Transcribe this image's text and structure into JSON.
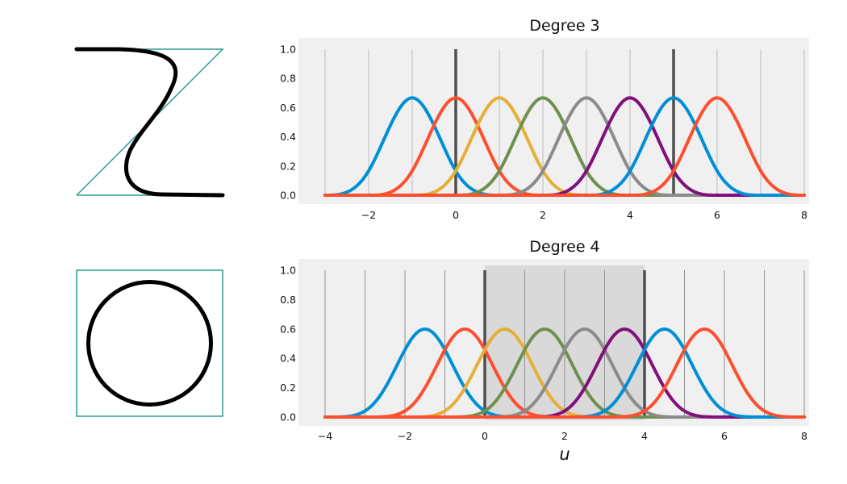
{
  "colors": {
    "background": "#ffffff",
    "plot_background": "#f0f0f0",
    "highlight_band": "#d9d9d9",
    "grid": "#bdbdbd",
    "knot_line": "#4f4f4f",
    "control_polygon": "#2a9d8f",
    "curve": "#000000",
    "series": [
      "#008fd5",
      "#fc4f30",
      "#e5ae38",
      "#6d904f",
      "#8b8b8b",
      "#810f7c",
      "#008fd5",
      "#fc4f30"
    ]
  },
  "insets": [
    {
      "name": "z-curve",
      "shape": "control-polygon with cubic B-spline curve"
    },
    {
      "name": "circle",
      "shape": "square control polygon with closed curve"
    }
  ],
  "chart_data": [
    {
      "type": "line",
      "title": "Degree 3",
      "xlabel": "",
      "ylabel": "",
      "degree": 3,
      "xlim": [
        -3.5,
        8.1
      ],
      "ylim": [
        -0.05,
        1.07
      ],
      "xticks": [
        -2,
        0,
        2,
        4,
        6,
        8
      ],
      "xtick_labels": [
        "−2",
        "0",
        "2",
        "4",
        "6",
        "8"
      ],
      "yticks": [
        0.0,
        0.2,
        0.4,
        0.6,
        0.8,
        1.0
      ],
      "ytick_labels": [
        "0.0",
        "0.2",
        "0.4",
        "0.6",
        "0.8",
        "1.0"
      ],
      "knots": [
        -3,
        -2,
        -1,
        0,
        1,
        2,
        3,
        4,
        5,
        6,
        7,
        8
      ],
      "knot_grid": true,
      "domain_knots": [
        0,
        5
      ],
      "shaded_domain": false,
      "series": [
        {
          "knot_start": -3,
          "peak_x": -1,
          "peak_y": 0.667
        },
        {
          "knot_start": -2,
          "peak_x": 0,
          "peak_y": 0.667
        },
        {
          "knot_start": -1,
          "peak_x": 1,
          "peak_y": 0.667
        },
        {
          "knot_start": 0,
          "peak_x": 2,
          "peak_y": 0.667
        },
        {
          "knot_start": 1,
          "peak_x": 3,
          "peak_y": 0.667
        },
        {
          "knot_start": 2,
          "peak_x": 4,
          "peak_y": 0.667
        },
        {
          "knot_start": 3,
          "peak_x": 5,
          "peak_y": 0.667
        },
        {
          "knot_start": 4,
          "peak_x": 6,
          "peak_y": 0.667
        }
      ]
    },
    {
      "type": "line",
      "title": "Degree 4",
      "xlabel": "u",
      "ylabel": "",
      "degree": 4,
      "xlim": [
        -4.3,
        8.1
      ],
      "ylim": [
        -0.06,
        1.07
      ],
      "xticks": [
        -4,
        -2,
        0,
        2,
        4,
        6,
        8
      ],
      "xtick_labels": [
        "−4",
        "−2",
        "0",
        "2",
        "4",
        "6",
        "8"
      ],
      "yticks": [
        0.0,
        0.2,
        0.4,
        0.6,
        0.8,
        1.0
      ],
      "ytick_labels": [
        "0.0",
        "0.2",
        "0.4",
        "0.6",
        "0.8",
        "1.0"
      ],
      "knots": [
        -4,
        -3,
        -2,
        -1,
        0,
        1,
        2,
        3,
        4,
        5,
        6,
        7,
        8
      ],
      "knot_grid": true,
      "domain_knots": [
        0,
        4
      ],
      "shaded_domain": true,
      "series": [
        {
          "knot_start": -4,
          "peak_x": -1.5,
          "peak_y": 0.599
        },
        {
          "knot_start": -3,
          "peak_x": -0.5,
          "peak_y": 0.599
        },
        {
          "knot_start": -2,
          "peak_x": 0.5,
          "peak_y": 0.599
        },
        {
          "knot_start": -1,
          "peak_x": 1.5,
          "peak_y": 0.599
        },
        {
          "knot_start": 0,
          "peak_x": 2.5,
          "peak_y": 0.599
        },
        {
          "knot_start": 1,
          "peak_x": 3.5,
          "peak_y": 0.599
        },
        {
          "knot_start": 2,
          "peak_x": 4.5,
          "peak_y": 0.599
        },
        {
          "knot_start": 3,
          "peak_x": 5.5,
          "peak_y": 0.599
        }
      ]
    }
  ]
}
